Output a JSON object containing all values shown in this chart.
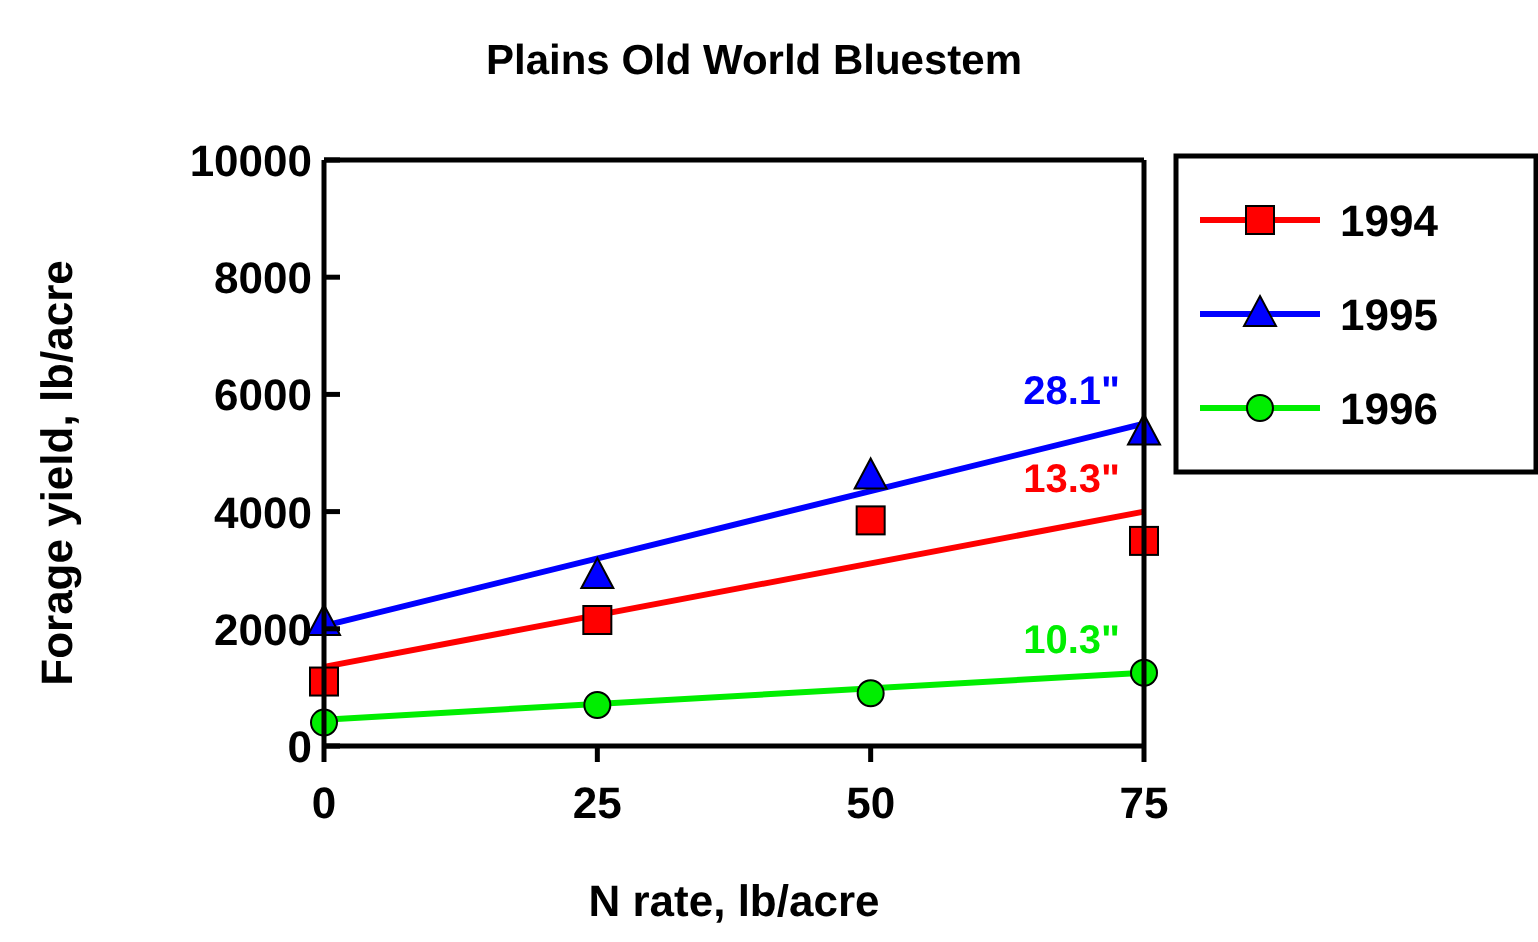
{
  "chart_data": {
    "type": "scatter",
    "title": "Plains Old World Bluestem",
    "xlabel": "N rate, lb/acre",
    "ylabel": "Forage yield, lb/acre",
    "xlim": [
      0,
      75
    ],
    "xticks": [
      0,
      25,
      50,
      75
    ],
    "ylim": [
      0,
      10000
    ],
    "yticks": [
      0,
      2000,
      4000,
      6000,
      8000,
      10000
    ],
    "legend": "right",
    "grid": false,
    "series": [
      {
        "name": "1994",
        "color": "#ff0000",
        "marker": "square",
        "x": [
          0,
          25,
          50,
          75
        ],
        "values": [
          1100,
          2150,
          3850,
          3500
        ]
      },
      {
        "name": "1995",
        "color": "#0000ff",
        "marker": "triangle",
        "x": [
          0,
          25,
          50,
          75
        ],
        "values": [
          2100,
          2900,
          4600,
          5350
        ]
      },
      {
        "name": "1996",
        "color": "#00ee00",
        "marker": "circle",
        "x": [
          0,
          25,
          50,
          75
        ],
        "values": [
          400,
          700,
          900,
          1250
        ]
      },
      {
        "type": "line",
        "color": "#0000ff",
        "marker": "none",
        "x": [
          0,
          75
        ],
        "values": [
          2050,
          5500
        ]
      },
      {
        "type": "line",
        "color": "#ff0000",
        "marker": "none",
        "x": [
          0,
          75
        ],
        "values": [
          1350,
          4000
        ]
      },
      {
        "type": "line",
        "color": "#00ee00",
        "marker": "none",
        "x": [
          0,
          75
        ],
        "values": [
          450,
          1250
        ]
      }
    ],
    "annotations": [
      "28.1\"",
      "13.3\"",
      "10.3\""
    ]
  }
}
